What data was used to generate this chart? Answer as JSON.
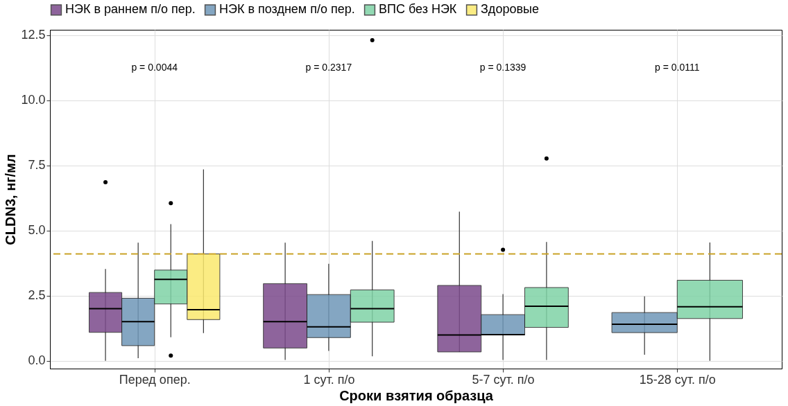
{
  "chart_data": {
    "type": "box",
    "xlabel": "Сроки взятия образца",
    "ylabel": "CLDN3, нг/мл",
    "categories": [
      "Перед опер.",
      "1 сут. п/о",
      "5-7 сут. п/о",
      "15-28 сут. п/о"
    ],
    "ylim": [
      -0.3,
      12.7
    ],
    "yticks": [
      {
        "value": 0,
        "label": "0.0"
      },
      2.5,
      {
        "value": 5,
        "label": "5.0"
      },
      7.5,
      {
        "value": 10,
        "label": "10.0"
      },
      12.5
    ],
    "grid": true,
    "legend": "top",
    "series": [
      {
        "name": "НЭК в раннем п/о пер.",
        "color": "#7b4a8b",
        "boxes": [
          {
            "low": 0.0,
            "q1": 1.09,
            "median": 2.0,
            "q3": 2.62,
            "high": 3.52,
            "outliers": [
              6.85
            ]
          },
          {
            "low": 0.03,
            "q1": 0.49,
            "median": 1.5,
            "q3": 2.96,
            "high": 4.53
          },
          {
            "low": 0.34,
            "q1": 0.34,
            "median": 0.99,
            "q3": 2.89,
            "high": 5.72
          },
          null
        ]
      },
      {
        "name": "НЭК в позднем п/о пер.",
        "color": "#6f97b8",
        "boxes": [
          {
            "low": 0.1,
            "q1": 0.58,
            "median": 1.5,
            "q3": 2.4,
            "high": 4.53
          },
          {
            "low": 0.38,
            "q1": 0.89,
            "median": 1.3,
            "q3": 2.54,
            "high": 3.72
          },
          {
            "low": 0.03,
            "q1": 0.99,
            "median": 1.0,
            "q3": 1.77,
            "high": 2.56,
            "outliers": [
              4.26
            ]
          },
          {
            "low": 0.23,
            "q1": 1.08,
            "median": 1.4,
            "q3": 1.85,
            "high": 2.47
          }
        ]
      },
      {
        "name": "ВПС без НЭК",
        "color": "#7fd3a6",
        "boxes": [
          {
            "low": 0.9,
            "q1": 2.18,
            "median": 3.12,
            "q3": 3.48,
            "high": 5.24,
            "outliers": [
              6.05,
              0.2
            ]
          },
          {
            "low": 0.17,
            "q1": 1.48,
            "median": 2.0,
            "q3": 2.72,
            "high": 4.6,
            "outliers": [
              12.3
            ]
          },
          {
            "low": 0.03,
            "q1": 1.28,
            "median": 2.09,
            "q3": 2.81,
            "high": 4.56,
            "outliers": [
              7.76
            ]
          },
          {
            "low": 0.0,
            "q1": 1.62,
            "median": 2.07,
            "q3": 3.09,
            "high": 4.54
          }
        ]
      },
      {
        "name": "Здоровые",
        "color": "#fbe96e",
        "boxes": [
          {
            "low": 1.06,
            "q1": 1.58,
            "median": 1.96,
            "q3": 4.1,
            "high": 7.34
          },
          null,
          null,
          null
        ]
      }
    ],
    "ref_lines": [
      {
        "axis": "y",
        "value": 4.1,
        "color": "#c9a227",
        "line_style": "dashed"
      }
    ],
    "annotations": [
      "p = 0.0044",
      "p = 0.2317",
      "p = 0.1339",
      "p = 0.0111"
    ]
  }
}
